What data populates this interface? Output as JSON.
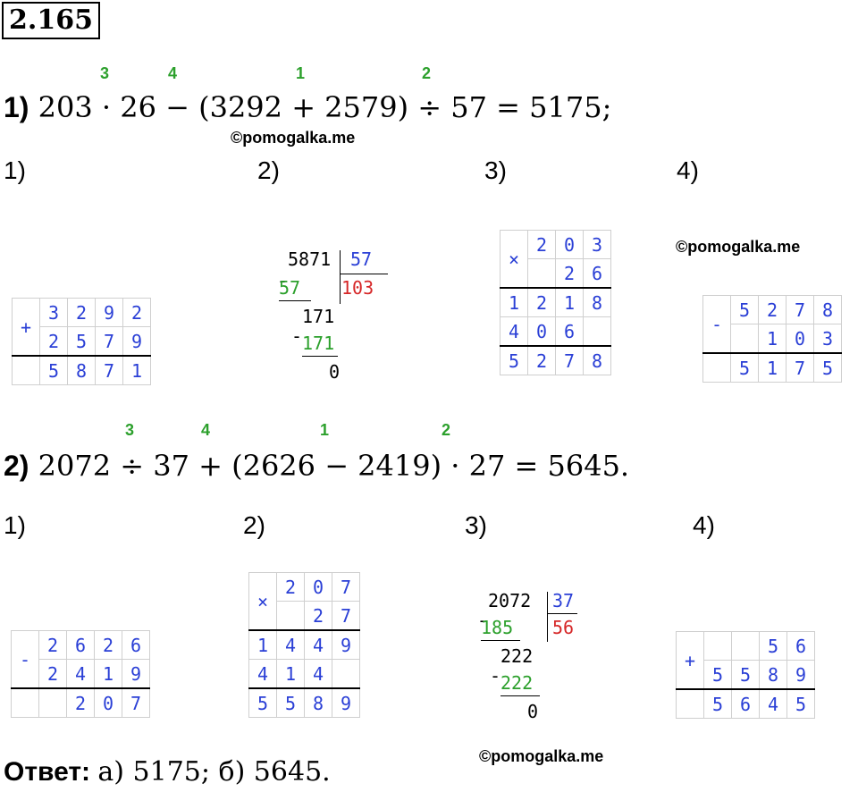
{
  "task_number": "2.165",
  "watermark": "©pomogalka.me",
  "part1": {
    "label": "1)",
    "expression": "203 · 26 − (3292 + 2579) ÷ 57 = 5175;",
    "order_marks": [
      "3",
      "4",
      "1",
      "2"
    ],
    "step_labels": [
      "1)",
      "2)",
      "3)",
      "4)"
    ],
    "addition": {
      "sign": "+",
      "rows": [
        [
          "3",
          "2",
          "9",
          "2"
        ],
        [
          "2",
          "5",
          "7",
          "9"
        ]
      ],
      "result": [
        "5",
        "8",
        "7",
        "1"
      ]
    },
    "division": {
      "dividend": "5871",
      "divisor": "57",
      "quotient": "103",
      "sub1": "57",
      "rem1": "171",
      "sub2": "171",
      "rem_final": "0"
    },
    "multiplication": {
      "sign": "×",
      "rows": [
        [
          "",
          "2",
          "0",
          "3"
        ],
        [
          "",
          "",
          "2",
          "6"
        ]
      ],
      "partials": [
        [
          "1",
          "2",
          "1",
          "8"
        ],
        [
          "4",
          "0",
          "6",
          ""
        ]
      ],
      "result": [
        "5",
        "2",
        "7",
        "8"
      ]
    },
    "subtraction": {
      "sign": "-",
      "rows": [
        [
          "5",
          "2",
          "7",
          "8"
        ],
        [
          "",
          "1",
          "0",
          "3"
        ]
      ],
      "result": [
        "5",
        "1",
        "7",
        "5"
      ]
    }
  },
  "part2": {
    "label": "2)",
    "expression": "2072 ÷ 37 + (2626 − 2419) · 27 = 5645.",
    "order_marks": [
      "3",
      "4",
      "1",
      "2"
    ],
    "step_labels": [
      "1)",
      "2)",
      "3)",
      "4)"
    ],
    "subtraction": {
      "sign": "-",
      "rows": [
        [
          "2",
          "6",
          "2",
          "6"
        ],
        [
          "2",
          "4",
          "1",
          "9"
        ]
      ],
      "result": [
        "",
        "2",
        "0",
        "7"
      ]
    },
    "multiplication": {
      "sign": "×",
      "rows": [
        [
          "",
          "2",
          "0",
          "7"
        ],
        [
          "",
          "",
          "2",
          "7"
        ]
      ],
      "partials": [
        [
          "1",
          "4",
          "4",
          "9"
        ],
        [
          "4",
          "1",
          "4",
          ""
        ]
      ],
      "result": [
        "5",
        "5",
        "8",
        "9"
      ]
    },
    "division": {
      "dividend": "2072",
      "divisor": "37",
      "quotient": "56",
      "sub1": "185",
      "rem1": "222",
      "sub2": "222",
      "rem_final": "0"
    },
    "addition": {
      "sign": "+",
      "rows": [
        [
          "",
          "",
          "5",
          "6"
        ],
        [
          "5",
          "5",
          "8",
          "9"
        ]
      ],
      "result": [
        "5",
        "6",
        "4",
        "5"
      ]
    }
  },
  "answer": {
    "label": "Ответ:",
    "values": "а) 5175;  б) 5645."
  }
}
